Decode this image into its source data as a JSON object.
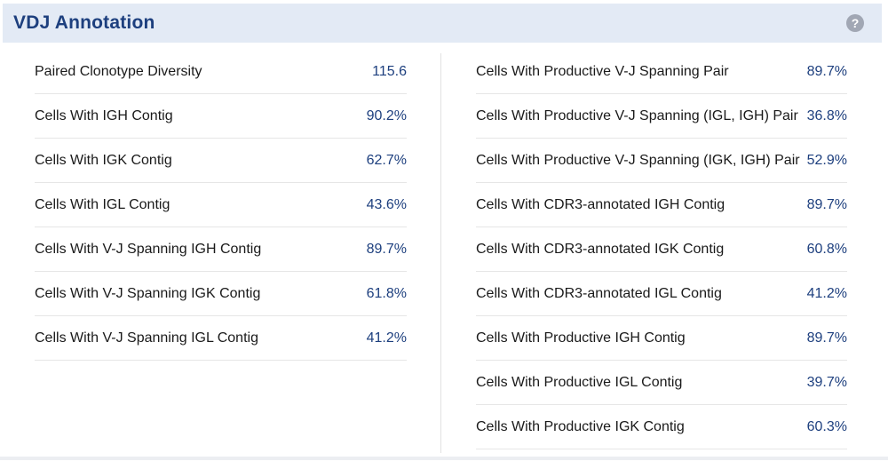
{
  "panel": {
    "title": "VDJ Annotation",
    "help_glyph": "?"
  },
  "left_metrics": [
    {
      "label": "Paired Clonotype Diversity",
      "value": "115.6"
    },
    {
      "label": "Cells With IGH Contig",
      "value": "90.2%"
    },
    {
      "label": "Cells With IGK Contig",
      "value": "62.7%"
    },
    {
      "label": "Cells With IGL Contig",
      "value": "43.6%"
    },
    {
      "label": "Cells With V-J Spanning IGH Contig",
      "value": "89.7%"
    },
    {
      "label": "Cells With V-J Spanning IGK Contig",
      "value": "61.8%"
    },
    {
      "label": "Cells With V-J Spanning IGL Contig",
      "value": "41.2%"
    }
  ],
  "right_metrics": [
    {
      "label": "Cells With Productive V-J Spanning Pair",
      "value": "89.7%"
    },
    {
      "label": "Cells With Productive V-J Spanning (IGL, IGH) Pair",
      "value": "36.8%"
    },
    {
      "label": "Cells With Productive V-J Spanning (IGK, IGH) Pair",
      "value": "52.9%"
    },
    {
      "label": "Cells With CDR3-annotated IGH Contig",
      "value": "89.7%"
    },
    {
      "label": "Cells With CDR3-annotated IGK Contig",
      "value": "60.8%"
    },
    {
      "label": "Cells With CDR3-annotated IGL Contig",
      "value": "41.2%"
    },
    {
      "label": "Cells With Productive IGH Contig",
      "value": "89.7%"
    },
    {
      "label": "Cells With Productive IGL Contig",
      "value": "39.7%"
    },
    {
      "label": "Cells With Productive IGK Contig",
      "value": "60.3%"
    }
  ],
  "colors": {
    "header_bg": "#e3eaf5",
    "title": "#1d3f7e",
    "value": "#1d3f7e",
    "help_icon": "#a1a7b4"
  }
}
